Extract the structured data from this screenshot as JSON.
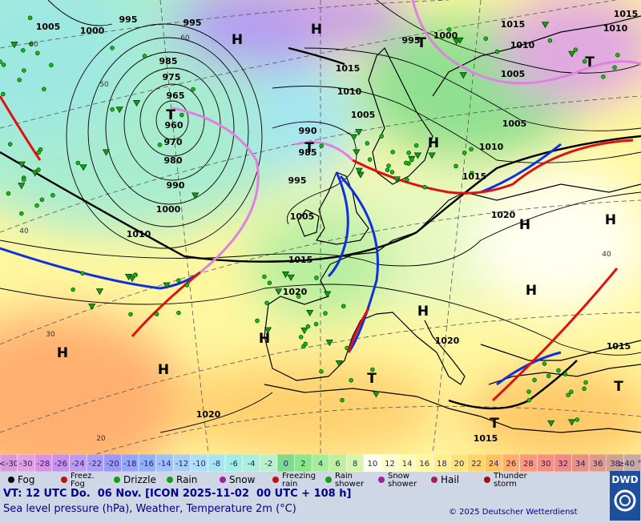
{
  "map": {
    "pressure_labels": [
      "1005",
      "1000",
      "995",
      "995",
      "985",
      "975",
      "965",
      "960",
      "970",
      "980",
      "990",
      "1000",
      "1010",
      "995",
      "990",
      "985",
      "1005",
      "1015",
      "1020",
      "1015",
      "1010",
      "1005",
      "1000",
      "995",
      "1015",
      "1010",
      "1005",
      "1005",
      "1010",
      "1015",
      "1020",
      "1020",
      "1015",
      "1015",
      "1020",
      "1015",
      "1010"
    ],
    "highs": [
      "H",
      "H",
      "H",
      "H",
      "H",
      "H",
      "H",
      "H",
      "H",
      "H"
    ],
    "lows": [
      "T",
      "T",
      "T",
      "T",
      "T",
      "T",
      "T"
    ],
    "latitudes": [
      "60",
      "50",
      "40",
      "30",
      "20",
      "60",
      "40"
    ]
  },
  "colorbar": {
    "labels": [
      "<-30",
      -30,
      -28,
      -26,
      -24,
      -22,
      -20,
      -18,
      -16,
      -14,
      -12,
      -10,
      -8,
      -6,
      -4,
      -2,
      0,
      2,
      4,
      6,
      8,
      10,
      12,
      14,
      16,
      18,
      20,
      22,
      24,
      26,
      28,
      30,
      32,
      34,
      36,
      38,
      "≥40 °C"
    ],
    "colors": [
      "#d99ad9",
      "#e2a2e2",
      "#d894e4",
      "#c892ea",
      "#bd9cf0",
      "#ae9ff2",
      "#9c99f2",
      "#97a6f7",
      "#8fb1f8",
      "#9fc1f8",
      "#a8cff8",
      "#b0def6",
      "#a7e6f0",
      "#a0eee6",
      "#a9efdc",
      "#bbf0cf",
      "#7fd98e",
      "#8fe48e",
      "#a6ec9d",
      "#bfef9f",
      "#d7f6ad",
      "#fffff2",
      "#ffffd2",
      "#ffffba",
      "#fff7a2",
      "#ffee90",
      "#ffe47e",
      "#ffd46e",
      "#ffc462",
      "#ffae6c",
      "#fd9878",
      "#f69083",
      "#ee8a88",
      "#e69282",
      "#de9a8a",
      "#cfa292",
      "#c8aaa2"
    ]
  },
  "legend": {
    "items": [
      [
        "Fog"
      ],
      [
        "Freez.",
        "Fog"
      ],
      [
        "Drizzle"
      ],
      [
        "Rain"
      ],
      [
        "Snow"
      ],
      [
        "Freezing",
        "rain"
      ],
      [
        "Rain",
        "shower"
      ],
      [
        "Snow",
        "shower"
      ],
      [
        "Hail"
      ],
      [
        "Thunder",
        "storm"
      ]
    ]
  },
  "footer": {
    "valid_time": "VT: 12 UTC Do.  06 Nov. [ICON 2025-11-02  00 UTC + 108 h]",
    "description": "Sea level pressure (hPa), Weather, Temperature 2m (°C)",
    "copyright": "© 2025 Deutscher Wetterdienst",
    "logo": "DWD"
  }
}
